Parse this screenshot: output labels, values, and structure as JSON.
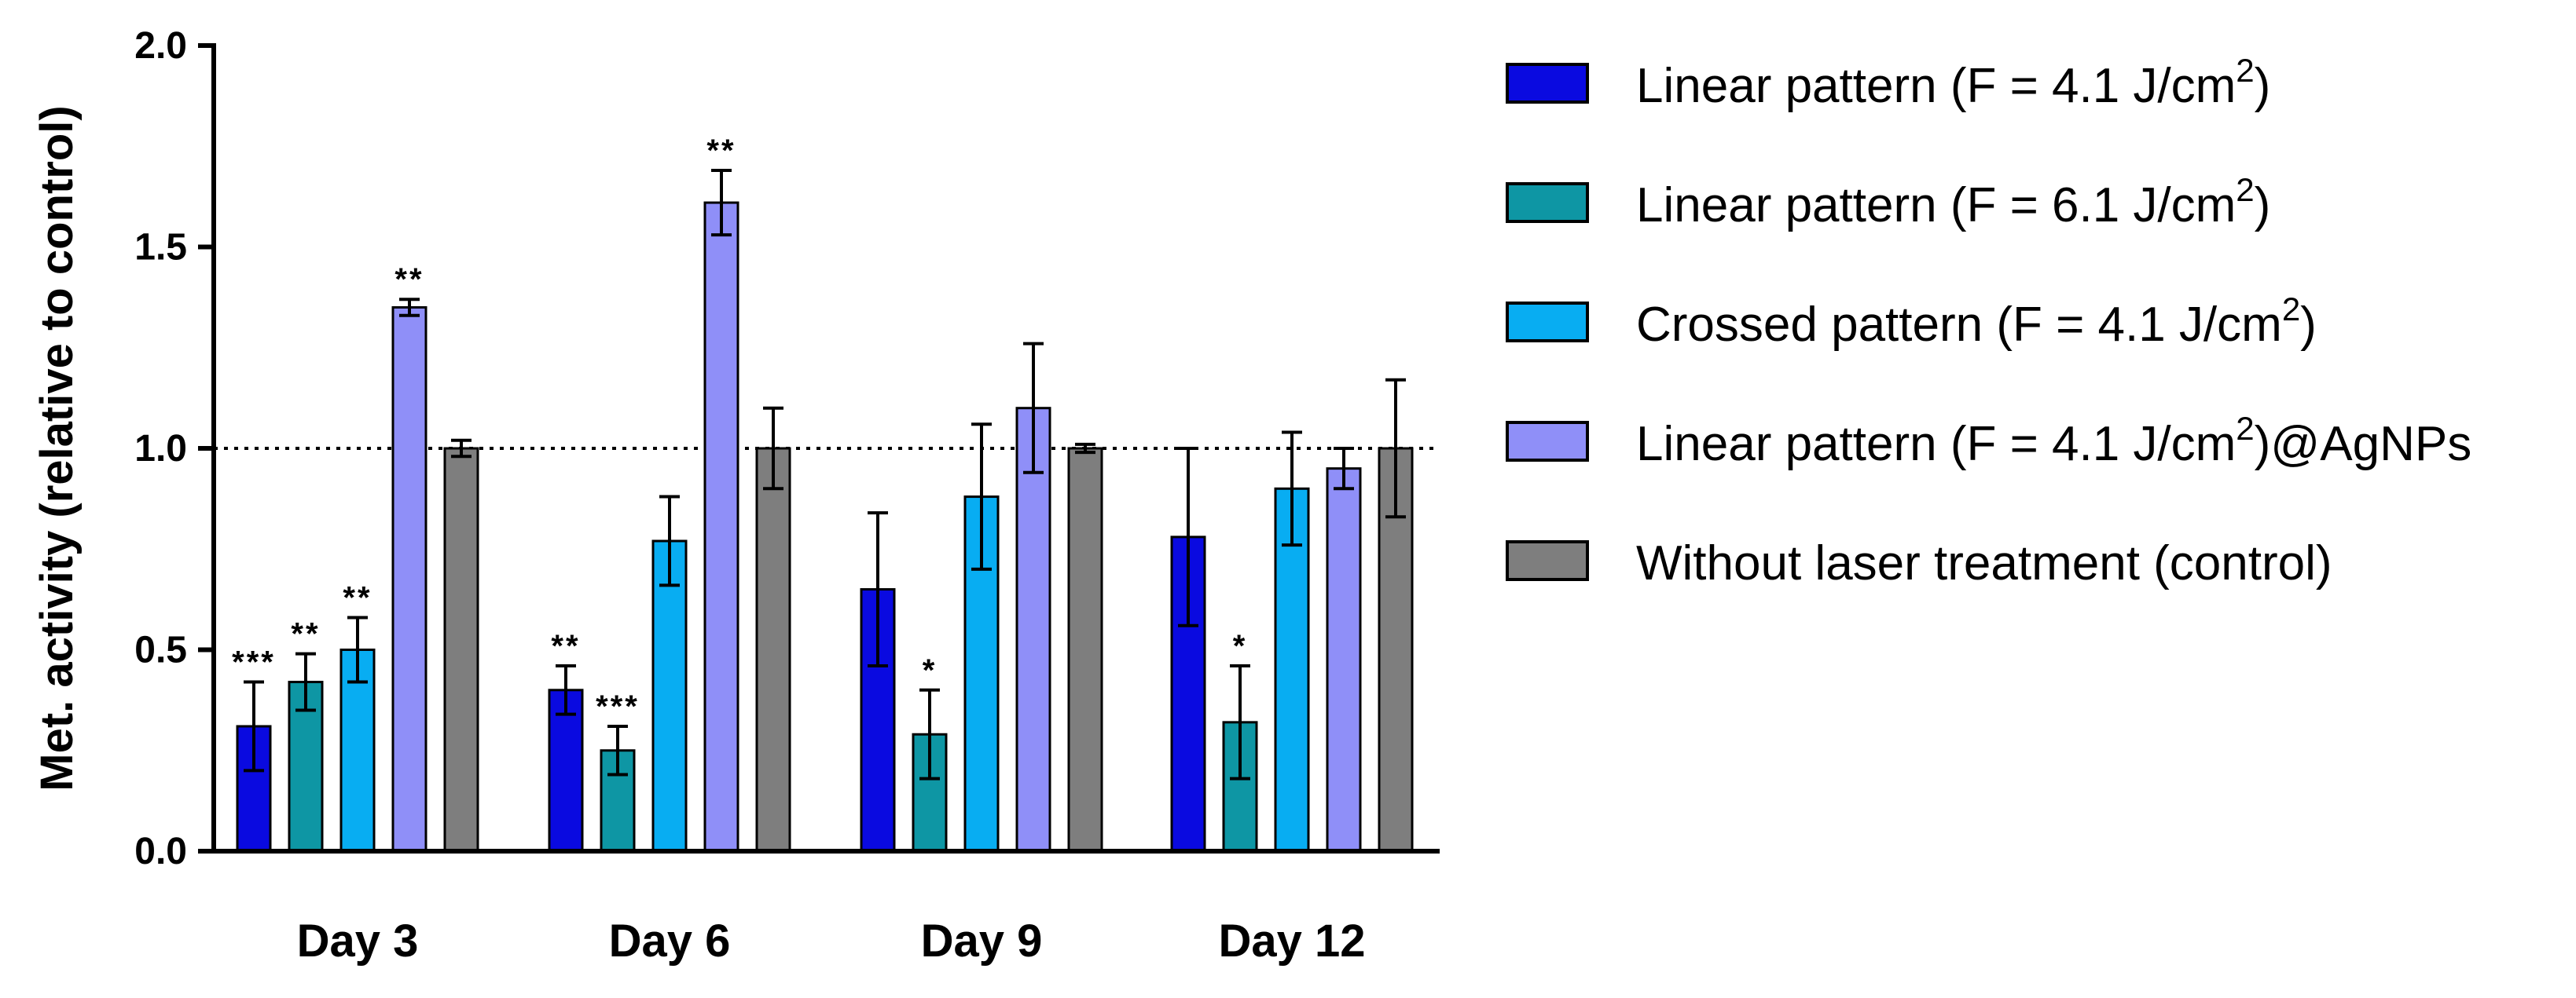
{
  "chart_data": {
    "type": "bar",
    "title": "",
    "xlabel": "",
    "ylabel": "Met. activity (relative to control)",
    "ylim": [
      0,
      2.0
    ],
    "yticks": [
      0.0,
      0.5,
      1.0,
      1.5,
      2.0
    ],
    "ytick_labels": [
      "0.0",
      "0.5",
      "1.0",
      "1.5",
      "2.0"
    ],
    "reference_line": 1.0,
    "categories": [
      "Day 3",
      "Day 6",
      "Day 9",
      "Day 12"
    ],
    "legend_position": "right",
    "series": [
      {
        "name": "Linear pattern (F = 4.1 J/cm2)",
        "legend": {
          "pre": "Linear pattern (F = 4.1 J/cm",
          "sup": "2",
          "post": ")"
        },
        "color": "#0a0ae0",
        "values": [
          0.31,
          0.4,
          0.65,
          0.78
        ],
        "errors": [
          0.11,
          0.06,
          0.19,
          0.22
        ],
        "annotations": [
          "***",
          "**",
          "",
          ""
        ]
      },
      {
        "name": "Linear pattern (F = 6.1 J/cm2)",
        "legend": {
          "pre": "Linear pattern (F = 6.1 J/cm",
          "sup": "2",
          "post": ")"
        },
        "color": "#0e96a4",
        "values": [
          0.42,
          0.25,
          0.29,
          0.32
        ],
        "errors": [
          0.07,
          0.06,
          0.11,
          0.14
        ],
        "annotations": [
          "**",
          "***",
          "*",
          "*"
        ]
      },
      {
        "name": "Crossed pattern (F = 4.1 J/cm2)",
        "legend": {
          "pre": "Crossed pattern (F = 4.1 J/cm",
          "sup": "2",
          "post": ")"
        },
        "color": "#08adf2",
        "values": [
          0.5,
          0.77,
          0.88,
          0.9
        ],
        "errors": [
          0.08,
          0.11,
          0.18,
          0.14
        ],
        "annotations": [
          "**",
          "",
          "",
          ""
        ]
      },
      {
        "name": "Linear pattern (F = 4.1 J/cm2)@AgNPs",
        "legend": {
          "pre": "Linear pattern (F = 4.1 J/cm",
          "sup": "2",
          "post": ")@AgNPs"
        },
        "color": "#8f8ff8",
        "values": [
          1.35,
          1.61,
          1.1,
          0.95
        ],
        "errors": [
          0.02,
          0.08,
          0.16,
          0.05
        ],
        "annotations": [
          "**",
          "**",
          "",
          ""
        ]
      },
      {
        "name": "Without laser treatment (control)",
        "legend": {
          "pre": "Without laser treatment (control)",
          "sup": "",
          "post": ""
        },
        "color": "#7e7e7e",
        "values": [
          1.0,
          1.0,
          1.0,
          1.0
        ],
        "errors": [
          0.02,
          0.1,
          0.01,
          0.17
        ],
        "annotations": [
          "",
          "",
          "",
          ""
        ]
      }
    ]
  }
}
